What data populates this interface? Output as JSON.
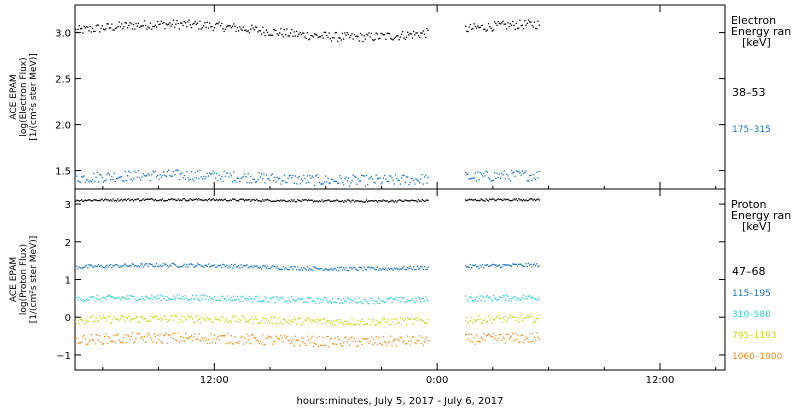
{
  "chart_data": [
    {
      "type": "scatter",
      "panel": "electron",
      "ylabel_lines": [
        "ACE EPAM",
        "log(Electron Flux)",
        "[1/(cm²s ster MeV)]"
      ],
      "ylim": [
        1.3,
        3.3
      ],
      "yticks": [
        1.5,
        2.0,
        2.5,
        3.0
      ],
      "ytick_labels": [
        "1.5",
        "2.0",
        "2.5",
        "3.0"
      ],
      "legend_title": [
        "Electron",
        "Energy ran",
        "[keV]"
      ],
      "series": [
        {
          "name": "38–53",
          "color": "#000000",
          "level": 3.02,
          "wave": 0.07,
          "noise": 0.05
        },
        {
          "name": "175–315",
          "color": "#1a73c4",
          "level": 1.42,
          "wave": 0.03,
          "noise": 0.06
        }
      ]
    },
    {
      "type": "scatter",
      "panel": "proton",
      "ylabel_lines": [
        "ACE EPAM",
        "log(Proton Flux)",
        "[1/(cm²s ster MeV)]"
      ],
      "ylim": [
        -1.4,
        3.4
      ],
      "yticks": [
        -1,
        0,
        1,
        2,
        3
      ],
      "ytick_labels": [
        "−1",
        "0",
        "1",
        "2",
        "3"
      ],
      "legend_title": [
        "Proton",
        "Energy ran",
        "[keV]"
      ],
      "series": [
        {
          "name": "47–68",
          "color": "#000000",
          "level": 3.1,
          "wave": 0.02,
          "noise": 0.03
        },
        {
          "name": "115–195",
          "color": "#1a73c4",
          "level": 1.33,
          "wave": 0.05,
          "noise": 0.05
        },
        {
          "name": "310–580",
          "color": "#2ed3d3",
          "level": 0.48,
          "wave": 0.04,
          "noise": 0.08
        },
        {
          "name": "795–1193",
          "color": "#c9d60f",
          "level": -0.08,
          "wave": 0.04,
          "noise": 0.1
        },
        {
          "name": "1060–1900",
          "color": "#f08a1a",
          "level": -0.6,
          "wave": 0.05,
          "noise": 0.14
        }
      ]
    }
  ],
  "x_axis": {
    "label": "hours:minutes, July  5, 2017 - July  6, 2017",
    "range_hours": [
      4.5,
      39.5
    ],
    "ticks_hours": [
      12,
      24,
      36
    ],
    "tick_labels": [
      "12:00",
      "0:00",
      "12:00"
    ],
    "data_segments_hours": [
      [
        4.5,
        23.5
      ],
      [
        25.5,
        29.5
      ]
    ]
  }
}
